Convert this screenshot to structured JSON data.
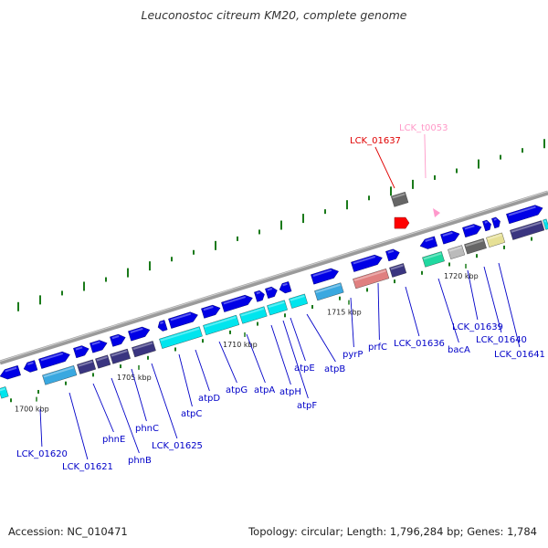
{
  "title": "Leuconostoc citreum KM20, complete genome",
  "accession": "Accession: NC_010471",
  "summary": "Topology: circular; Length: 1,796,284 bp; Genes: 1,784",
  "colors": {
    "backbone": "#8c8c8c",
    "gene": "#0000e6",
    "cog_cyan": "#00e5ee",
    "cog_lightblue": "#3aa8e0",
    "cog_navy": "#3a3580",
    "cog_gray": "#666666",
    "cog_lightgray": "#bbbbbb",
    "cog_salmon": "#e08080",
    "cog_mint": "#20d8a0",
    "cog_khaki": "#e6e096",
    "rna": "#ff0000",
    "trna": "#ff99cc",
    "gc_dots": "#1a7a1a",
    "label": "#0000c8"
  },
  "scale_ticks": [
    {
      "label": "1700 kbp"
    },
    {
      "label": "1705 kbp"
    },
    {
      "label": "1710 kbp"
    },
    {
      "label": "1715 kbp"
    },
    {
      "label": "1720 kbp"
    }
  ],
  "gene_labels": [
    {
      "text": "LCK_01620",
      "style": "blue"
    },
    {
      "text": "LCK_01621",
      "style": "blue"
    },
    {
      "text": "phnE",
      "style": "blue"
    },
    {
      "text": "phnB",
      "style": "blue"
    },
    {
      "text": "phnC",
      "style": "blue"
    },
    {
      "text": "LCK_01625",
      "style": "blue"
    },
    {
      "text": "atpC",
      "style": "blue"
    },
    {
      "text": "atpD",
      "style": "blue"
    },
    {
      "text": "atpG",
      "style": "blue"
    },
    {
      "text": "atpA",
      "style": "blue"
    },
    {
      "text": "atpH",
      "style": "blue"
    },
    {
      "text": "atpF",
      "style": "blue"
    },
    {
      "text": "atpE",
      "style": "blue"
    },
    {
      "text": "atpB",
      "style": "blue"
    },
    {
      "text": "pyrP",
      "style": "blue"
    },
    {
      "text": "prfC",
      "style": "blue"
    },
    {
      "text": "LCK_01636",
      "style": "blue"
    },
    {
      "text": "bacA",
      "style": "blue"
    },
    {
      "text": "LCK_01639",
      "style": "blue"
    },
    {
      "text": "LCK_01640",
      "style": "blue"
    },
    {
      "text": "LCK_01641",
      "style": "blue"
    },
    {
      "text": "LCK_01637",
      "style": "red"
    },
    {
      "text": "LCK_t0053",
      "style": "pink"
    }
  ]
}
